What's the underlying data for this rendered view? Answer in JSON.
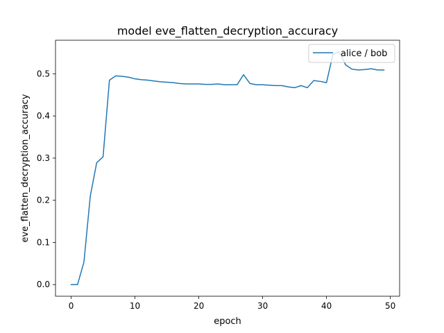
{
  "chart_data": {
    "type": "line",
    "title": "model eve_flatten_decryption_accuracy",
    "xlabel": "epoch",
    "ylabel": "eve_flatten_decryption_accuracy",
    "xlim": [
      -2.45,
      51.45
    ],
    "ylim": [
      -0.0276,
      0.5796
    ],
    "xticks": [
      0,
      10,
      20,
      30,
      40,
      50
    ],
    "yticks": [
      0.0,
      0.1,
      0.2,
      0.3,
      0.4,
      0.5
    ],
    "xtick_labels": [
      "0",
      "10",
      "20",
      "30",
      "40",
      "50"
    ],
    "ytick_labels": [
      "0.0",
      "0.1",
      "0.2",
      "0.3",
      "0.4",
      "0.5"
    ],
    "grid": false,
    "legend_position": "top-right",
    "series": [
      {
        "name": "alice / bob",
        "color": "#1f77b4",
        "x": [
          0,
          1,
          2,
          3,
          4,
          5,
          6,
          7,
          8,
          9,
          10,
          11,
          12,
          13,
          14,
          15,
          16,
          17,
          18,
          19,
          20,
          21,
          22,
          23,
          24,
          25,
          26,
          27,
          28,
          29,
          30,
          31,
          32,
          33,
          34,
          35,
          36,
          37,
          38,
          39,
          40,
          41,
          42,
          43,
          44,
          45,
          46,
          47,
          48,
          49
        ],
        "y": [
          0.0,
          0.0,
          0.053,
          0.21,
          0.289,
          0.303,
          0.485,
          0.495,
          0.494,
          0.492,
          0.488,
          0.486,
          0.485,
          0.483,
          0.481,
          0.48,
          0.479,
          0.477,
          0.476,
          0.476,
          0.476,
          0.475,
          0.475,
          0.476,
          0.474,
          0.474,
          0.474,
          0.498,
          0.477,
          0.474,
          0.474,
          0.473,
          0.472,
          0.472,
          0.469,
          0.467,
          0.472,
          0.467,
          0.484,
          0.482,
          0.479,
          0.546,
          0.552,
          0.521,
          0.511,
          0.509,
          0.51,
          0.512,
          0.509,
          0.509
        ]
      }
    ]
  }
}
